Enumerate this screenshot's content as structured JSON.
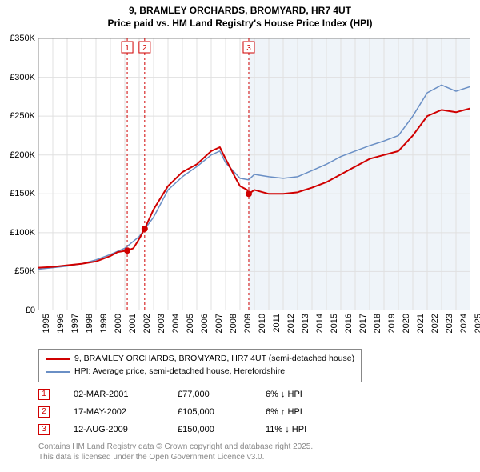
{
  "title": {
    "line1": "9, BRAMLEY ORCHARDS, BROMYARD, HR7 4UT",
    "line2": "Price paid vs. HM Land Registry's House Price Index (HPI)"
  },
  "chart": {
    "type": "line",
    "background_color": "#ffffff",
    "grid_color": "#e0e0e0",
    "x_range": [
      1995,
      2025
    ],
    "x_ticks": [
      1995,
      1996,
      1997,
      1998,
      1999,
      2000,
      2001,
      2002,
      2003,
      2004,
      2005,
      2006,
      2007,
      2008,
      2009,
      2010,
      2011,
      2012,
      2013,
      2014,
      2015,
      2016,
      2017,
      2018,
      2019,
      2020,
      2021,
      2022,
      2023,
      2024,
      2025
    ],
    "y_range": [
      0,
      350
    ],
    "y_ticks": [
      0,
      50,
      100,
      150,
      200,
      250,
      300,
      350
    ],
    "y_tick_labels": [
      "£0",
      "£50K",
      "£100K",
      "£150K",
      "£200K",
      "£250K",
      "£300K",
      "£350K"
    ],
    "shade_future": {
      "from_x": 2009.6,
      "color": "#eff4f9"
    },
    "series": [
      {
        "name": "price_paid",
        "label": "9, BRAMLEY ORCHARDS, BROMYARD, HR7 4UT (semi-detached house)",
        "color": "#d00000",
        "line_width": 2,
        "data": [
          [
            1995,
            55
          ],
          [
            1996,
            56
          ],
          [
            1997,
            58
          ],
          [
            1998,
            60
          ],
          [
            1999,
            63
          ],
          [
            2000,
            70
          ],
          [
            2000.5,
            75
          ],
          [
            2001.17,
            77
          ],
          [
            2001.6,
            80
          ],
          [
            2002,
            92
          ],
          [
            2002.38,
            105
          ],
          [
            2003,
            130
          ],
          [
            2004,
            160
          ],
          [
            2005,
            178
          ],
          [
            2006,
            188
          ],
          [
            2007,
            205
          ],
          [
            2007.6,
            210
          ],
          [
            2008,
            195
          ],
          [
            2008.7,
            170
          ],
          [
            2009,
            160
          ],
          [
            2009.5,
            155
          ],
          [
            2009.61,
            150
          ],
          [
            2010,
            155
          ],
          [
            2011,
            150
          ],
          [
            2012,
            150
          ],
          [
            2013,
            152
          ],
          [
            2014,
            158
          ],
          [
            2015,
            165
          ],
          [
            2016,
            175
          ],
          [
            2017,
            185
          ],
          [
            2018,
            195
          ],
          [
            2019,
            200
          ],
          [
            2020,
            205
          ],
          [
            2021,
            225
          ],
          [
            2022,
            250
          ],
          [
            2023,
            258
          ],
          [
            2024,
            255
          ],
          [
            2025,
            260
          ]
        ]
      },
      {
        "name": "hpi",
        "label": "HPI: Average price, semi-detached house, Herefordshire",
        "color": "#6a8fc5",
        "line_width": 1.5,
        "data": [
          [
            1995,
            53
          ],
          [
            1996,
            55
          ],
          [
            1997,
            57
          ],
          [
            1998,
            60
          ],
          [
            1999,
            65
          ],
          [
            2000,
            72
          ],
          [
            2001,
            80
          ],
          [
            2002,
            95
          ],
          [
            2003,
            120
          ],
          [
            2004,
            155
          ],
          [
            2005,
            172
          ],
          [
            2006,
            185
          ],
          [
            2007,
            200
          ],
          [
            2007.6,
            205
          ],
          [
            2008,
            190
          ],
          [
            2009,
            170
          ],
          [
            2009.6,
            168
          ],
          [
            2010,
            175
          ],
          [
            2011,
            172
          ],
          [
            2012,
            170
          ],
          [
            2013,
            172
          ],
          [
            2014,
            180
          ],
          [
            2015,
            188
          ],
          [
            2016,
            198
          ],
          [
            2017,
            205
          ],
          [
            2018,
            212
          ],
          [
            2019,
            218
          ],
          [
            2020,
            225
          ],
          [
            2021,
            250
          ],
          [
            2022,
            280
          ],
          [
            2023,
            290
          ],
          [
            2024,
            282
          ],
          [
            2025,
            288
          ]
        ]
      }
    ],
    "marker_lines": [
      {
        "id": "1",
        "x": 2001.17,
        "color": "#d00000",
        "dash": "3,3"
      },
      {
        "id": "2",
        "x": 2002.38,
        "color": "#d00000",
        "dash": "3,3"
      },
      {
        "id": "3",
        "x": 2009.61,
        "color": "#d00000",
        "dash": "3,3"
      }
    ],
    "sale_points": [
      {
        "x": 2001.17,
        "y": 77,
        "color": "#d00000"
      },
      {
        "x": 2002.38,
        "y": 105,
        "color": "#d00000"
      },
      {
        "x": 2009.61,
        "y": 150,
        "color": "#d00000"
      }
    ]
  },
  "legend": {
    "items": [
      {
        "color": "#d00000",
        "text": "9, BRAMLEY ORCHARDS, BROMYARD, HR7 4UT (semi-detached house)"
      },
      {
        "color": "#6a8fc5",
        "text": "HPI: Average price, semi-detached house, Herefordshire"
      }
    ]
  },
  "sales": [
    {
      "id": "1",
      "date": "02-MAR-2001",
      "price": "£77,000",
      "delta": "6% ↓ HPI"
    },
    {
      "id": "2",
      "date": "17-MAY-2002",
      "price": "£105,000",
      "delta": "6% ↑ HPI"
    },
    {
      "id": "3",
      "date": "12-AUG-2009",
      "price": "£150,000",
      "delta": "11% ↓ HPI"
    }
  ],
  "footer": {
    "line1": "Contains HM Land Registry data © Crown copyright and database right 2025.",
    "line2": "This data is licensed under the Open Government Licence v3.0."
  }
}
